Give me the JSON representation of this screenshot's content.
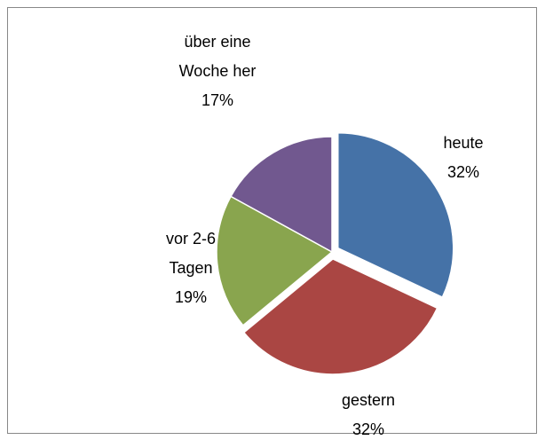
{
  "chart_data": {
    "type": "pie",
    "categories": [
      "heute",
      "gestern",
      "vor 2-6 Tagen",
      "über eine Woche her"
    ],
    "values": [
      32,
      32,
      19,
      17
    ],
    "value_labels": [
      "32%",
      "32%",
      "19%",
      "17%"
    ],
    "colors": [
      "#4572a7",
      "#aa4643",
      "#89a54e",
      "#71588f"
    ],
    "exploded": [
      true,
      true,
      false,
      false
    ]
  }
}
